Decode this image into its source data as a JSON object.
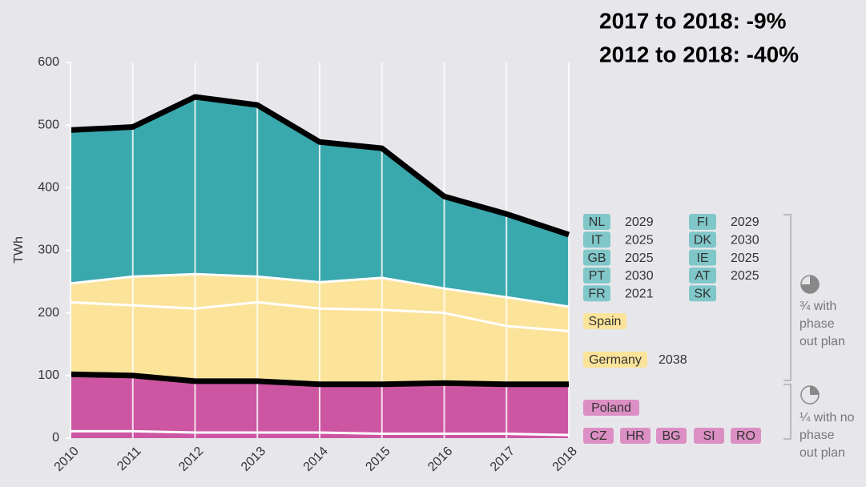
{
  "chart_data": {
    "type": "stacked_area",
    "annotations": [
      "2017 to 2018: -9%",
      "2012 to 2018: -40%"
    ],
    "y_label": "TWh",
    "categories": [
      "2010",
      "2011",
      "2012",
      "2013",
      "2014",
      "2015",
      "2016",
      "2017",
      "2018"
    ],
    "ylim": [
      0,
      600
    ],
    "yticks": [
      0,
      100,
      200,
      300,
      400,
      500,
      600
    ],
    "grid": true,
    "series": [
      {
        "color": "#cd56a2",
        "badge_color": "#dc8fc4",
        "outline": "#ffffff",
        "values": [
          11,
          11,
          9,
          9,
          9,
          7,
          7,
          7,
          5
        ],
        "members": [
          {
            "code": "CZ"
          },
          {
            "code": "HR"
          },
          {
            "code": "BG"
          },
          {
            "code": "SI"
          },
          {
            "code": "RO"
          }
        ]
      },
      {
        "name": "Poland",
        "color": "#cd56a2",
        "badge_color": "#dc8fc4",
        "outline": "#000000",
        "values": [
          91,
          89,
          82,
          82,
          77,
          79,
          81,
          79,
          81
        ]
      },
      {
        "name": "Germany",
        "color": "#fbe39a",
        "badge_color": "#fbe39a",
        "outline": "#ffffff",
        "phase_out": 2038,
        "values": [
          115,
          112,
          116,
          126,
          121,
          119,
          112,
          93,
          85
        ]
      },
      {
        "name": "Spain",
        "color": "#fbe39a",
        "badge_color": "#fbe39a",
        "outline": "#ffffff",
        "values": [
          30,
          46,
          55,
          41,
          42,
          51,
          39,
          46,
          39
        ]
      },
      {
        "color": "#3aa9ae",
        "badge_color": "#80c7ca",
        "outline": "#000000",
        "values": [
          245,
          239,
          283,
          274,
          224,
          207,
          147,
          133,
          115
        ],
        "members": [
          {
            "code": "NL",
            "year": 2029
          },
          {
            "code": "IT",
            "year": 2025
          },
          {
            "code": "GB",
            "year": 2025
          },
          {
            "code": "PT",
            "year": 2030
          },
          {
            "code": "FR",
            "year": 2021
          },
          {
            "code": "FI",
            "year": 2029
          },
          {
            "code": "DK",
            "year": 2030
          },
          {
            "code": "IE",
            "year": 2025
          },
          {
            "code": "AT",
            "year": 2025
          },
          {
            "code": "SK"
          }
        ]
      }
    ],
    "brackets": [
      {
        "lines": [
          "¾ with",
          "phase",
          "out plan"
        ]
      },
      {
        "lines": [
          "¼ with no",
          "phase",
          "out plan"
        ]
      }
    ]
  }
}
